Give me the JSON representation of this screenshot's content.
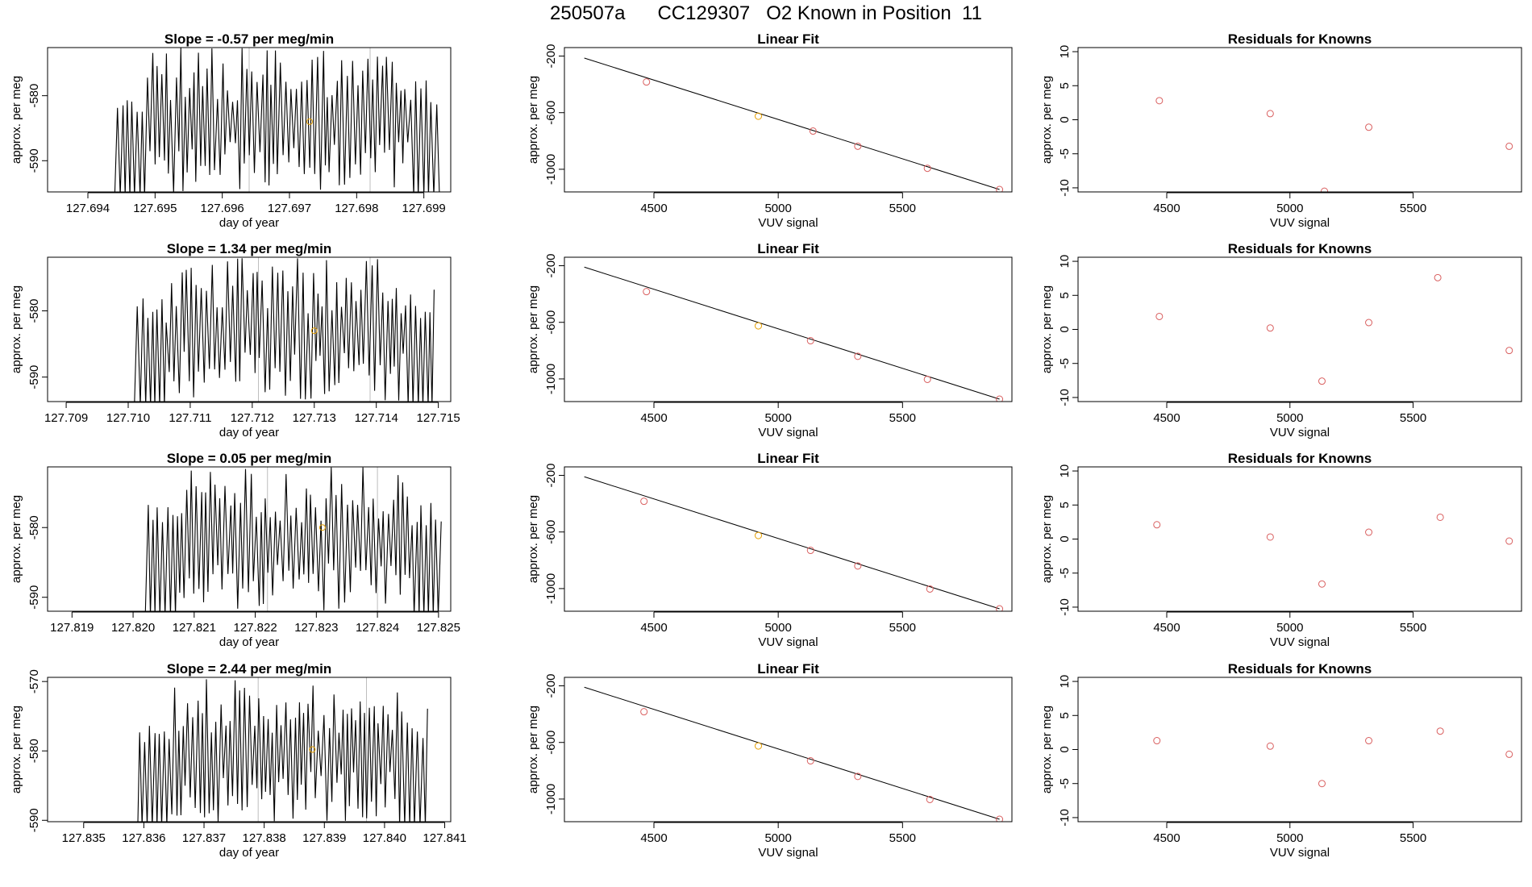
{
  "page_title": "250507a      CC129307   O2 Known in Position  11",
  "colors": {
    "trace": "#000000",
    "known_point": "#d95f5f",
    "highlight_point": "#e69f00",
    "fit_line": "#000000",
    "marker_line": "#bdbdbd"
  },
  "chart_data": [
    {
      "type": "line",
      "panel": "time-series",
      "row": 1,
      "title": "Slope =  -0.57  per meg/min",
      "xlabel": "day of year",
      "ylabel": "approx. per meg",
      "xlim": [
        127.6934,
        127.6994
      ],
      "ylim": [
        -594.8,
        -572.6
      ],
      "xticks": [
        127.694,
        127.695,
        127.696,
        127.697,
        127.698,
        127.699
      ],
      "xtick_labels": [
        "127.694",
        "127.695",
        "127.696",
        "127.697",
        "127.698",
        "127.699"
      ],
      "yticks": [
        -590,
        -580
      ],
      "ytick_labels": [
        "-590",
        "-580"
      ],
      "trace_start": 127.6944,
      "trace_end": 127.6992,
      "markers": [
        127.6964,
        127.6982
      ],
      "mean_point": {
        "x": 127.6973,
        "y": -584.0
      }
    },
    {
      "type": "scatter",
      "panel": "linear-fit",
      "row": 1,
      "title": "Linear Fit",
      "xlabel": "VUV signal",
      "ylabel": "approx. per meg",
      "xlim": [
        4140,
        5940
      ],
      "ylim": [
        -1160,
        -140
      ],
      "xticks": [
        4500,
        5000,
        5500
      ],
      "xtick_labels": [
        "4500",
        "5000",
        "5500"
      ],
      "yticks": [
        -1000,
        -600,
        -200
      ],
      "ytick_labels": [
        "-1000",
        "-600",
        "-200"
      ],
      "x": [
        4470,
        4920,
        5140,
        5320,
        5600,
        5890
      ],
      "y": [
        -383,
        -625,
        -730,
        -837,
        -993,
        -1143
      ],
      "highlight_index": 1,
      "fit_line": [
        [
          4220,
          -214
        ],
        [
          5890,
          -1143
        ]
      ]
    },
    {
      "type": "scatter",
      "panel": "residuals",
      "row": 1,
      "title": "Residuals for Knowns",
      "xlabel": "VUV signal",
      "ylabel": "approx. per meg",
      "xlim": [
        4140,
        5940
      ],
      "ylim": [
        -10.6,
        10.6
      ],
      "xticks": [
        4500,
        5000,
        5500
      ],
      "xtick_labels": [
        "4500",
        "5000",
        "5500"
      ],
      "yticks": [
        -10,
        -5,
        0,
        5,
        10
      ],
      "ytick_labels": [
        "-10",
        "-5",
        "0",
        "5",
        "10"
      ],
      "x": [
        4470,
        4920,
        5140,
        5320,
        5890
      ],
      "y": [
        2.8,
        0.9,
        -10.5,
        -1.1,
        -3.9
      ]
    },
    {
      "type": "line",
      "panel": "time-series",
      "row": 2,
      "title": "Slope =  1.34  per meg/min",
      "xlabel": "day of year",
      "ylabel": "approx. per meg",
      "xlim": [
        127.7087,
        127.7152
      ],
      "ylim": [
        -593.7,
        -571.9
      ],
      "xticks": [
        127.709,
        127.71,
        127.711,
        127.712,
        127.713,
        127.714,
        127.715
      ],
      "xtick_labels": [
        "127.709",
        "127.710",
        "127.711",
        "127.712",
        "127.713",
        "127.714",
        "127.715"
      ],
      "yticks": [
        -590,
        -580
      ],
      "ytick_labels": [
        "-590",
        "-580"
      ],
      "trace_start": 127.7101,
      "trace_end": 127.7149,
      "markers": [
        127.7121,
        127.7139
      ],
      "mean_point": {
        "x": 127.713,
        "y": -583.0
      }
    },
    {
      "type": "scatter",
      "panel": "linear-fit",
      "row": 2,
      "title": "Linear Fit",
      "xlabel": "VUV signal",
      "ylabel": "approx. per meg",
      "xlim": [
        4140,
        5940
      ],
      "ylim": [
        -1160,
        -140
      ],
      "xticks": [
        4500,
        5000,
        5500
      ],
      "xtick_labels": [
        "4500",
        "5000",
        "5500"
      ],
      "yticks": [
        -1000,
        -600,
        -200
      ],
      "ytick_labels": [
        "-1000",
        "-600",
        "-200"
      ],
      "x": [
        4470,
        4920,
        5130,
        5320,
        5600,
        5890
      ],
      "y": [
        -383,
        -625,
        -730,
        -840,
        -1003,
        -1143
      ],
      "highlight_index": 1,
      "fit_line": [
        [
          4220,
          -210
        ],
        [
          5890,
          -1143
        ]
      ]
    },
    {
      "type": "scatter",
      "panel": "residuals",
      "row": 2,
      "title": "Residuals for Knowns",
      "xlabel": "VUV signal",
      "ylabel": "approx. per meg",
      "xlim": [
        4140,
        5940
      ],
      "ylim": [
        -10.6,
        10.6
      ],
      "xticks": [
        4500,
        5000,
        5500
      ],
      "xtick_labels": [
        "4500",
        "5000",
        "5500"
      ],
      "yticks": [
        -10,
        -5,
        0,
        5,
        10
      ],
      "ytick_labels": [
        "-10",
        "-5",
        "0",
        "5",
        "10"
      ],
      "x": [
        4470,
        4920,
        5130,
        5320,
        5600,
        5890
      ],
      "y": [
        1.9,
        0.2,
        -7.6,
        1.0,
        7.6,
        -3.1
      ]
    },
    {
      "type": "line",
      "panel": "time-series",
      "row": 3,
      "title": "Slope =  0.05  per meg/min",
      "xlabel": "day of year",
      "ylabel": "approx. per meg",
      "xlim": [
        127.8186,
        127.8252
      ],
      "ylim": [
        -592.0,
        -571.3
      ],
      "xticks": [
        127.819,
        127.82,
        127.821,
        127.822,
        127.823,
        127.824,
        127.825
      ],
      "xtick_labels": [
        "127.819",
        "127.820",
        "127.821",
        "127.822",
        "127.823",
        "127.824",
        "127.825"
      ],
      "yticks": [
        -590,
        -580
      ],
      "ytick_labels": [
        "-590",
        "-580"
      ],
      "trace_start": 127.8202,
      "trace_end": 127.825,
      "markers": [
        127.8222,
        127.824
      ],
      "mean_point": {
        "x": 127.8231,
        "y": -580.0
      }
    },
    {
      "type": "scatter",
      "panel": "linear-fit",
      "row": 3,
      "title": "Linear Fit",
      "xlabel": "VUV signal",
      "ylabel": "approx. per meg",
      "xlim": [
        4140,
        5940
      ],
      "ylim": [
        -1160,
        -140
      ],
      "xticks": [
        4500,
        5000,
        5500
      ],
      "xtick_labels": [
        "4500",
        "5000",
        "5500"
      ],
      "yticks": [
        -1000,
        -600,
        -200
      ],
      "ytick_labels": [
        "-1000",
        "-600",
        "-200"
      ],
      "x": [
        4460,
        4920,
        5130,
        5320,
        5610,
        5890
      ],
      "y": [
        -383,
        -625,
        -730,
        -840,
        -1003,
        -1143
      ],
      "highlight_index": 1,
      "fit_line": [
        [
          4220,
          -210
        ],
        [
          5890,
          -1143
        ]
      ]
    },
    {
      "type": "scatter",
      "panel": "residuals",
      "row": 3,
      "title": "Residuals for Knowns",
      "xlabel": "VUV signal",
      "ylabel": "approx. per meg",
      "xlim": [
        4140,
        5940
      ],
      "ylim": [
        -10.6,
        10.6
      ],
      "xticks": [
        4500,
        5000,
        5500
      ],
      "xtick_labels": [
        "4500",
        "5000",
        "5500"
      ],
      "yticks": [
        -10,
        -5,
        0,
        5,
        10
      ],
      "ytick_labels": [
        "-10",
        "-5",
        "0",
        "5",
        "10"
      ],
      "x": [
        4460,
        4920,
        5130,
        5320,
        5610,
        5890
      ],
      "y": [
        2.1,
        0.3,
        -6.6,
        1.0,
        3.2,
        -0.3
      ]
    },
    {
      "type": "line",
      "panel": "time-series",
      "row": 4,
      "title": "Slope =  2.44  per meg/min",
      "xlabel": "day of year",
      "ylabel": "approx. per meg",
      "xlim": [
        127.8344,
        127.8411
      ],
      "ylim": [
        -590.2,
        -569.4
      ],
      "xticks": [
        127.835,
        127.836,
        127.837,
        127.838,
        127.839,
        127.84,
        127.841
      ],
      "xtick_labels": [
        "127.835",
        "127.836",
        "127.837",
        "127.838",
        "127.839",
        "127.840",
        "127.841"
      ],
      "yticks": [
        -590,
        -580,
        -570
      ],
      "ytick_labels": [
        "-590",
        "-580",
        "-570"
      ],
      "trace_start": 127.8359,
      "trace_end": 127.8407,
      "markers": [
        127.8379,
        127.8397
      ],
      "mean_point": {
        "x": 127.8388,
        "y": -579.8
      }
    },
    {
      "type": "scatter",
      "panel": "linear-fit",
      "row": 4,
      "title": "Linear Fit",
      "xlabel": "VUV signal",
      "ylabel": "approx. per meg",
      "xlim": [
        4140,
        5940
      ],
      "ylim": [
        -1160,
        -140
      ],
      "xticks": [
        4500,
        5000,
        5500
      ],
      "xtick_labels": [
        "4500",
        "5000",
        "5500"
      ],
      "yticks": [
        -1000,
        -600,
        -200
      ],
      "ytick_labels": [
        "-1000",
        "-600",
        "-200"
      ],
      "x": [
        4460,
        4920,
        5130,
        5320,
        5610,
        5890
      ],
      "y": [
        -383,
        -625,
        -730,
        -840,
        -1003,
        -1143
      ],
      "highlight_index": 1,
      "fit_line": [
        [
          4220,
          -210
        ],
        [
          5890,
          -1143
        ]
      ]
    },
    {
      "type": "scatter",
      "panel": "residuals",
      "row": 4,
      "title": "Residuals for Knowns",
      "xlabel": "VUV signal",
      "ylabel": "approx. per meg",
      "xlim": [
        4140,
        5940
      ],
      "ylim": [
        -10.6,
        10.6
      ],
      "xticks": [
        4500,
        5000,
        5500
      ],
      "xtick_labels": [
        "4500",
        "5000",
        "5500"
      ],
      "yticks": [
        -10,
        -5,
        0,
        5,
        10
      ],
      "ytick_labels": [
        "-10",
        "-5",
        "0",
        "5",
        "10"
      ],
      "x": [
        4460,
        4920,
        5130,
        5320,
        5610,
        5890
      ],
      "y": [
        1.3,
        0.5,
        -5.0,
        1.3,
        2.7,
        -0.7
      ]
    }
  ]
}
